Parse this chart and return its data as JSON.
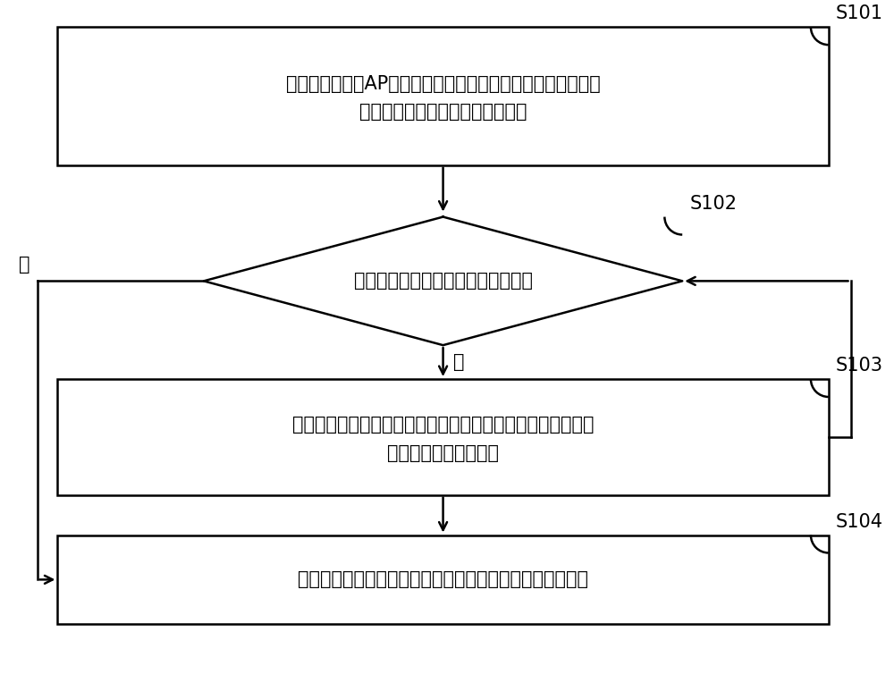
{
  "bg_color": "#ffffff",
  "line_color": "#000000",
  "text_color": "#000000",
  "font_size": 15,
  "step_label_font_size": 15,
  "box1_line1": "在配网设备进入AP模式后，为配网设备的无线接入点设置目标",
  "box1_line2": "信道，通过目标信道发送信标信号",
  "diamond_text": "检测无线接入点是否被终端设备连接",
  "box3_line1": "将配网设备的无线通信模块使用的当前信道切换为新信道，通",
  "box3_line2": "过新信道发送信标信号",
  "box4_text": "通过目标信道接收来自终端设备的网络配置数据，完成配网",
  "yes_label": "是",
  "no_label": "否",
  "s101": "S101",
  "s102": "S102",
  "s103": "S103",
  "s104": "S104"
}
